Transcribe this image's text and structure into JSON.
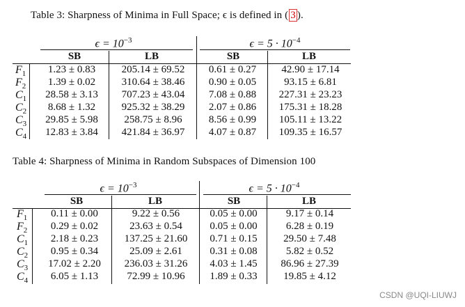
{
  "table3": {
    "caption_before_ref": "Table 3: Sharpness of Minima in Full Space; ϵ is defined in (",
    "caption_ref": "3",
    "caption_after_ref": ").",
    "eps_left": "ϵ = 10",
    "eps_left_exp": "−3",
    "eps_right": "ϵ = 5 · 10",
    "eps_right_exp": "−4",
    "headers": [
      "SB",
      "LB",
      "SB",
      "LB"
    ],
    "rows": [
      {
        "name": "F",
        "sub": "1",
        "cells": [
          "1.23 ± 0.83",
          "205.14 ± 69.52",
          "0.61 ± 0.27",
          "42.90 ± 17.14"
        ]
      },
      {
        "name": "F",
        "sub": "2",
        "cells": [
          "1.39 ± 0.02",
          "310.64 ± 38.46",
          "0.90 ± 0.05",
          "93.15 ± 6.81"
        ]
      },
      {
        "name": "C",
        "sub": "1",
        "cells": [
          "28.58 ± 3.13",
          "707.23 ± 43.04",
          "7.08 ± 0.88",
          "227.31 ± 23.23"
        ]
      },
      {
        "name": "C",
        "sub": "2",
        "cells": [
          "8.68 ± 1.32",
          "925.32 ± 38.29",
          "2.07 ± 0.86",
          "175.31 ± 18.28"
        ]
      },
      {
        "name": "C",
        "sub": "3",
        "cells": [
          "29.85 ± 5.98",
          "258.75 ± 8.96",
          "8.56 ± 0.99",
          "105.11 ± 13.22"
        ]
      },
      {
        "name": "C",
        "sub": "4",
        "cells": [
          "12.83 ± 3.84",
          "421.84 ± 36.97",
          "4.07 ± 0.87",
          "109.35 ± 16.57"
        ]
      }
    ]
  },
  "table4": {
    "caption": "Table 4: Sharpness of Minima in Random Subspaces of Dimension 100",
    "eps_left": "ϵ = 10",
    "eps_left_exp": "−3",
    "eps_right": "ϵ = 5 · 10",
    "eps_right_exp": "−4",
    "headers": [
      "SB",
      "LB",
      "SB",
      "LB"
    ],
    "rows": [
      {
        "name": "F",
        "sub": "1",
        "cells": [
          "0.11 ± 0.00",
          "9.22 ± 0.56",
          "0.05 ± 0.00",
          "9.17 ± 0.14"
        ]
      },
      {
        "name": "F",
        "sub": "2",
        "cells": [
          "0.29 ± 0.02",
          "23.63 ± 0.54",
          "0.05 ± 0.00",
          "6.28 ± 0.19"
        ]
      },
      {
        "name": "C",
        "sub": "1",
        "cells": [
          "2.18 ± 0.23",
          "137.25 ± 21.60",
          "0.71 ± 0.15",
          "29.50 ± 7.48"
        ]
      },
      {
        "name": "C",
        "sub": "2",
        "cells": [
          "0.95 ± 0.34",
          "25.09 ± 2.61",
          "0.31 ± 0.08",
          "5.82 ± 0.52"
        ]
      },
      {
        "name": "C",
        "sub": "3",
        "cells": [
          "17.02 ± 2.20",
          "236.03 ± 31.26",
          "4.03 ± 1.45",
          "86.96 ± 27.39"
        ]
      },
      {
        "name": "C",
        "sub": "4",
        "cells": [
          "6.05 ± 1.13",
          "72.99 ± 10.96",
          "1.89 ± 0.33",
          "19.85 ± 4.12"
        ]
      }
    ]
  },
  "watermark": "CSDN @UQI-LIUWJ"
}
